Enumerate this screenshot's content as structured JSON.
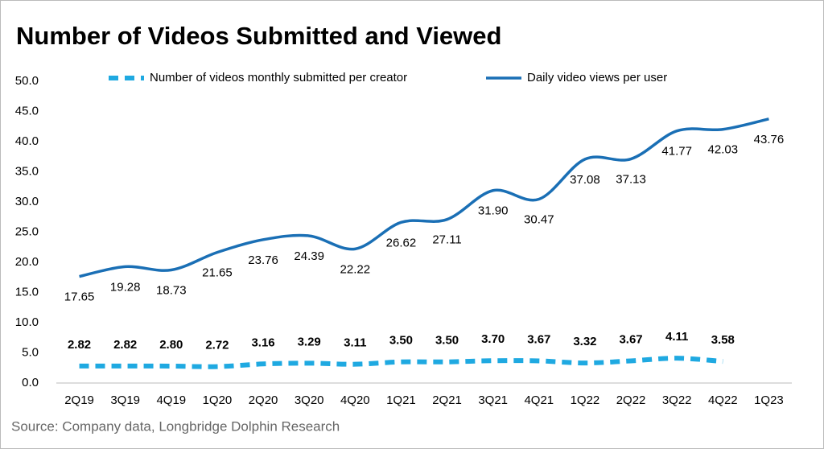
{
  "chart_data": {
    "type": "line",
    "title": "Number of Videos Submitted and Viewed",
    "source": "Source: Company data, Longbridge Dolphin Research",
    "categories": [
      "2Q19",
      "3Q19",
      "4Q19",
      "1Q20",
      "2Q20",
      "3Q20",
      "4Q20",
      "1Q21",
      "2Q21",
      "3Q21",
      "4Q21",
      "1Q22",
      "2Q22",
      "3Q22",
      "4Q22",
      "1Q23"
    ],
    "series": [
      {
        "name": "Number of videos monthly submitted per creator",
        "color": "#1fa9e1",
        "dashed": true,
        "values": [
          2.82,
          2.82,
          2.8,
          2.72,
          3.16,
          3.29,
          3.11,
          3.5,
          3.5,
          3.7,
          3.67,
          3.32,
          3.67,
          4.11,
          3.58,
          null
        ],
        "value_labels": [
          "2.82",
          "2.82",
          "2.80",
          "2.72",
          "3.16",
          "3.29",
          "3.11",
          "3.50",
          "3.50",
          "3.70",
          "3.67",
          "3.32",
          "3.67",
          "4.11",
          "3.58",
          null
        ]
      },
      {
        "name": "Daily video views per user",
        "color": "#1a6fb5",
        "dashed": false,
        "values": [
          17.65,
          19.28,
          18.73,
          21.65,
          23.76,
          24.39,
          22.22,
          26.62,
          27.11,
          31.9,
          30.47,
          37.08,
          37.13,
          41.77,
          42.03,
          43.76
        ],
        "value_labels": [
          "17.65",
          "19.28",
          "18.73",
          "21.65",
          "23.76",
          "24.39",
          "22.22",
          "26.62",
          "27.11",
          "31.90",
          "30.47",
          "37.08",
          "37.13",
          "41.77",
          "42.03",
          "43.76"
        ]
      }
    ],
    "ylim": [
      0,
      50
    ],
    "yticks": [
      {
        "value": 0,
        "label": "0.0"
      },
      {
        "value": 5,
        "label": "5.0"
      },
      {
        "value": 10,
        "label": "10.0"
      },
      {
        "value": 15,
        "label": "15.0"
      },
      {
        "value": 20,
        "label": "20.0"
      },
      {
        "value": 25,
        "label": "25.0"
      },
      {
        "value": 30,
        "label": "30.0"
      },
      {
        "value": 35,
        "label": "35.0"
      },
      {
        "value": 40,
        "label": "40.0"
      },
      {
        "value": 45,
        "label": "45.0"
      },
      {
        "value": 50,
        "label": "50.0"
      }
    ],
    "grid": false
  }
}
